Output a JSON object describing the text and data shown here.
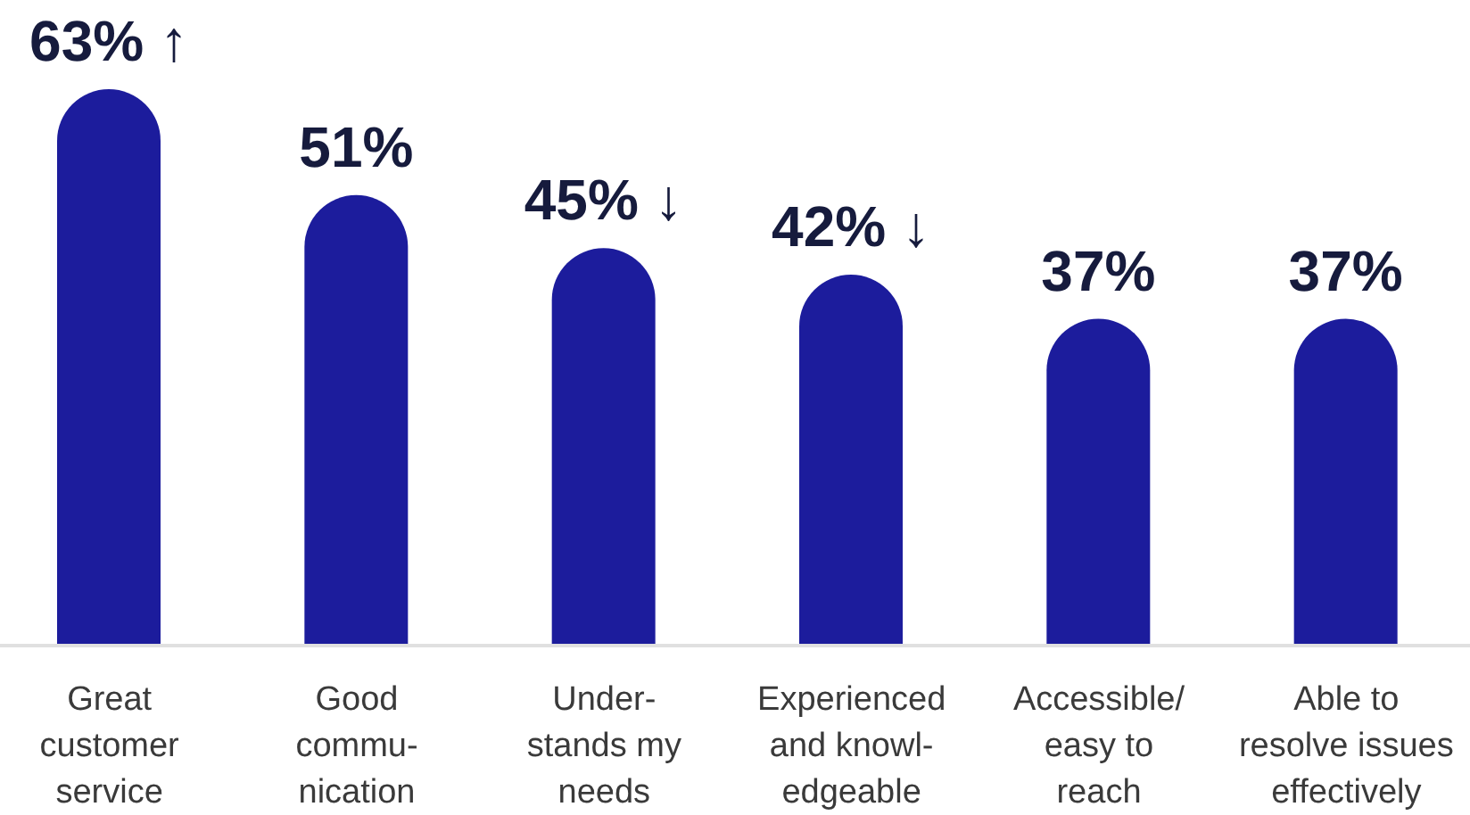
{
  "chart_data": {
    "type": "bar",
    "categories": [
      "Great\ncustomer\nservice",
      "Good\ncommu-\nnication",
      "Under-\nstands my\nneeds",
      "Experienced\nand knowl-\nedgeable",
      "Accessible/\neasy to\nreach",
      "Able to\nresolve issues\neffectively"
    ],
    "values": [
      63,
      51,
      45,
      42,
      37,
      37
    ],
    "value_labels": [
      "63% ↑",
      "51%",
      "45% ↓",
      "42% ↓",
      "37%",
      "37%"
    ],
    "color": "#1c1c9c",
    "grid": false,
    "legend": false
  }
}
